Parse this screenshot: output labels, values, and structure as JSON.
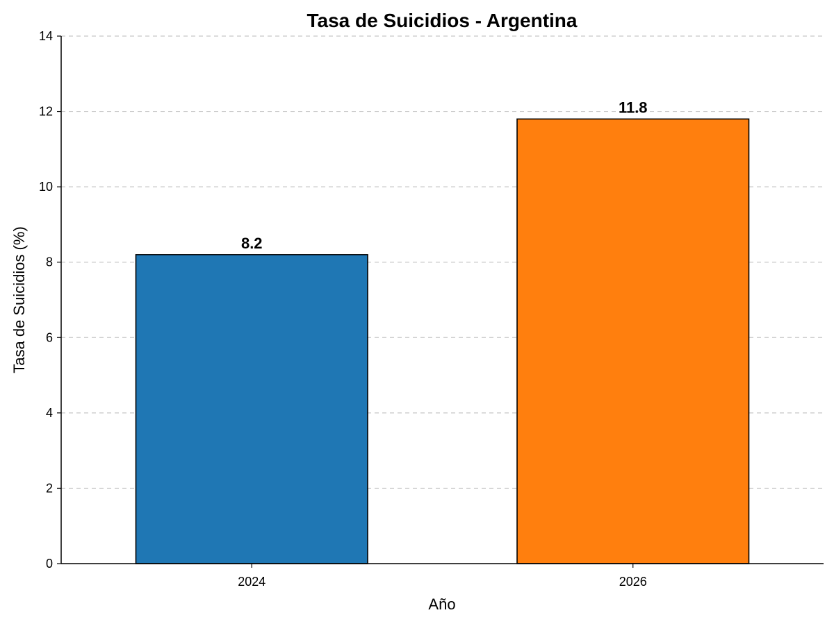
{
  "chart_data": {
    "type": "bar",
    "title": "Tasa de Suicidios - Argentina",
    "xlabel": "Año",
    "ylabel": "Tasa de Suicidios (%)",
    "categories": [
      "2024",
      "2026"
    ],
    "values": [
      8.2,
      11.8
    ],
    "value_labels": [
      "8.2",
      "11.8"
    ],
    "colors": [
      "#1f77b4",
      "#ff7f0e"
    ],
    "ylim": [
      0,
      14
    ],
    "yticks": [
      0,
      2,
      4,
      6,
      8,
      10,
      12,
      14
    ],
    "grid": "y-dashed",
    "legend": "none"
  }
}
